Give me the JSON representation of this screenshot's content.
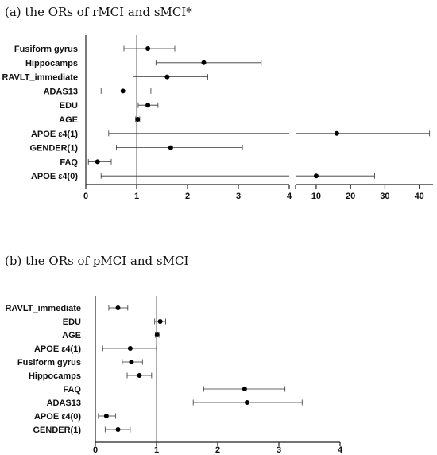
{
  "chart_data": [
    {
      "type": "forest",
      "title": "(a) the ORs of rMCI and sMCI*",
      "reference_line": 1,
      "broken_axis": true,
      "segments": [
        {
          "xlim": [
            0,
            4
          ],
          "ticks": [
            0,
            1,
            2,
            3,
            4
          ]
        },
        {
          "xlim": [
            4,
            44
          ],
          "ticks": [
            10,
            20,
            30,
            40
          ]
        }
      ],
      "rows": [
        {
          "label": "Fusiform gyrus",
          "or": 1.22,
          "lo": 0.75,
          "hi": 1.75
        },
        {
          "label": "Hippocamps",
          "or": 2.32,
          "lo": 1.38,
          "hi": 3.45
        },
        {
          "label": "RAVLT_immediate",
          "or": 1.6,
          "lo": 0.93,
          "hi": 2.4
        },
        {
          "label": "ADAS13",
          "or": 0.73,
          "lo": 0.3,
          "hi": 1.28
        },
        {
          "label": "EDU",
          "or": 1.22,
          "lo": 1.03,
          "hi": 1.42
        },
        {
          "label": "AGE",
          "or": 1.02,
          "lo": 0.98,
          "hi": 1.06
        },
        {
          "label": "APOE ε4(1)",
          "or": 16,
          "lo": 0.45,
          "hi": 43
        },
        {
          "label": "GENDER(1)",
          "or": 1.67,
          "lo": 0.6,
          "hi": 3.08
        },
        {
          "label": "FAQ",
          "or": 0.23,
          "lo": 0.05,
          "hi": 0.5
        },
        {
          "label": "APOE ε4(0)",
          "or": 10,
          "lo": 0.3,
          "hi": 27
        }
      ]
    },
    {
      "type": "forest",
      "title": "(b) the ORs of pMCI and sMCI",
      "reference_line": 1,
      "broken_axis": false,
      "xlim": [
        0,
        4
      ],
      "ticks": [
        0,
        1,
        2,
        3,
        4
      ],
      "rows": [
        {
          "label": "RAVLT_immediate",
          "or": 0.37,
          "lo": 0.22,
          "hi": 0.53
        },
        {
          "label": "EDU",
          "or": 1.06,
          "lo": 0.97,
          "hi": 1.15
        },
        {
          "label": "AGE",
          "or": 1.01,
          "lo": 0.98,
          "hi": 1.04
        },
        {
          "label": "APOE ε4(1)",
          "or": 0.57,
          "lo": 0.12,
          "hi": 1.0
        },
        {
          "label": "Fusiform gyrus",
          "or": 0.59,
          "lo": 0.44,
          "hi": 0.77
        },
        {
          "label": "Hippocamps",
          "or": 0.72,
          "lo": 0.52,
          "hi": 0.92
        },
        {
          "label": "FAQ",
          "or": 2.44,
          "lo": 1.77,
          "hi": 3.1
        },
        {
          "label": "ADAS13",
          "or": 2.48,
          "lo": 1.6,
          "hi": 3.38
        },
        {
          "label": "APOE ε4(0)",
          "or": 0.18,
          "lo": 0.05,
          "hi": 0.33
        },
        {
          "label": "GENDER(1)",
          "or": 0.37,
          "lo": 0.16,
          "hi": 0.57
        }
      ]
    }
  ]
}
